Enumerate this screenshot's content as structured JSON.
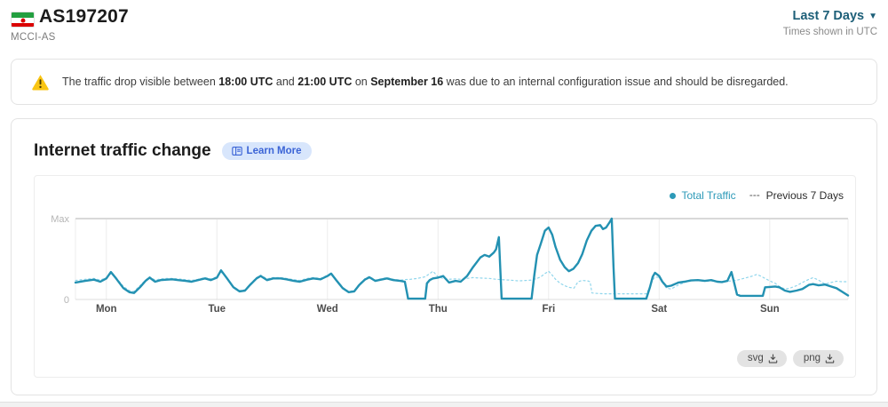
{
  "header": {
    "asn": "AS197207",
    "org": "MCCI-AS",
    "flag": "iran-flag",
    "range_label": "Last 7 Days",
    "range_caret": "▼",
    "timezone_note": "Times shown in UTC"
  },
  "banner": {
    "segments": [
      {
        "text": "The traffic drop visible between ",
        "bold": false
      },
      {
        "text": "18:00 UTC",
        "bold": true
      },
      {
        "text": " and ",
        "bold": false
      },
      {
        "text": "21:00 UTC",
        "bold": true
      },
      {
        "text": " on ",
        "bold": false
      },
      {
        "text": "September 16",
        "bold": true
      },
      {
        "text": " was due to an internal configuration issue and should be disregarded.",
        "bold": false
      }
    ]
  },
  "chart_card": {
    "title": "Internet traffic change",
    "learn_more_label": "Learn More",
    "download_buttons": [
      "svg",
      "png"
    ]
  },
  "chart_data": {
    "type": "line",
    "title": "Internet traffic change",
    "x_unit": "hours_from_Monday_00:00_UTC",
    "x_range": [
      -6.7,
      161
    ],
    "y_axis": {
      "labels": [
        "Max",
        "0"
      ],
      "range": [
        0,
        1
      ]
    },
    "grid": "vertical-day-lines",
    "legend_position": "top-right",
    "x_ticks": [
      {
        "label": "Mon",
        "hour": 0
      },
      {
        "label": "Tue",
        "hour": 24
      },
      {
        "label": "Wed",
        "hour": 48
      },
      {
        "label": "Thu",
        "hour": 72
      },
      {
        "label": "Fri",
        "hour": 96
      },
      {
        "label": "Sat",
        "hour": 120
      },
      {
        "label": "Sun",
        "hour": 144
      }
    ],
    "series": [
      {
        "name": "Total Traffic",
        "style": "solid",
        "color": "#2391b2",
        "points": [
          [
            -6.7,
            0.21
          ],
          [
            -4.6,
            0.23
          ],
          [
            -2.7,
            0.245
          ],
          [
            -1.3,
            0.22
          ],
          [
            0,
            0.26
          ],
          [
            1,
            0.34
          ],
          [
            2.1,
            0.26
          ],
          [
            3.7,
            0.14
          ],
          [
            5,
            0.09
          ],
          [
            6,
            0.08
          ],
          [
            7.3,
            0.15
          ],
          [
            8.5,
            0.23
          ],
          [
            9.4,
            0.27
          ],
          [
            10.6,
            0.22
          ],
          [
            11.8,
            0.24
          ],
          [
            13.1,
            0.245
          ],
          [
            14.3,
            0.25
          ],
          [
            15.6,
            0.24
          ],
          [
            17.2,
            0.23
          ],
          [
            18.5,
            0.22
          ],
          [
            19.9,
            0.24
          ],
          [
            21.4,
            0.26
          ],
          [
            22.7,
            0.24
          ],
          [
            24,
            0.27
          ],
          [
            24.9,
            0.36
          ],
          [
            26.2,
            0.26
          ],
          [
            27.6,
            0.15
          ],
          [
            28.9,
            0.1
          ],
          [
            30.1,
            0.11
          ],
          [
            31.2,
            0.18
          ],
          [
            32.6,
            0.26
          ],
          [
            33.5,
            0.29
          ],
          [
            34.9,
            0.24
          ],
          [
            36.2,
            0.26
          ],
          [
            37.8,
            0.26
          ],
          [
            39.1,
            0.25
          ],
          [
            40.7,
            0.23
          ],
          [
            42,
            0.22
          ],
          [
            43.6,
            0.245
          ],
          [
            44.9,
            0.26
          ],
          [
            46.5,
            0.25
          ],
          [
            48,
            0.29
          ],
          [
            48.8,
            0.32
          ],
          [
            49.9,
            0.24
          ],
          [
            51.3,
            0.14
          ],
          [
            52.6,
            0.09
          ],
          [
            53.8,
            0.1
          ],
          [
            54.9,
            0.18
          ],
          [
            56.1,
            0.245
          ],
          [
            57.1,
            0.275
          ],
          [
            58.4,
            0.23
          ],
          [
            59.6,
            0.245
          ],
          [
            60.9,
            0.26
          ],
          [
            62.3,
            0.24
          ],
          [
            63.8,
            0.23
          ],
          [
            64.8,
            0.22
          ],
          [
            65.2,
            0.1
          ],
          [
            65.5,
            0.01
          ],
          [
            69.2,
            0.01
          ],
          [
            69.6,
            0.2
          ],
          [
            70.2,
            0.24
          ],
          [
            70.9,
            0.26
          ],
          [
            72,
            0.27
          ],
          [
            73.1,
            0.29
          ],
          [
            74.4,
            0.21
          ],
          [
            75.8,
            0.23
          ],
          [
            76.9,
            0.22
          ],
          [
            78.3,
            0.29
          ],
          [
            79.6,
            0.4
          ],
          [
            81.2,
            0.52
          ],
          [
            82.1,
            0.55
          ],
          [
            83.1,
            0.53
          ],
          [
            84.1,
            0.58
          ],
          [
            84.6,
            0.62
          ],
          [
            85.2,
            0.77
          ],
          [
            85.5,
            0.4
          ],
          [
            85.8,
            0.01
          ],
          [
            92.3,
            0.01
          ],
          [
            92.9,
            0.3
          ],
          [
            93.5,
            0.55
          ],
          [
            94.3,
            0.69
          ],
          [
            95.2,
            0.85
          ],
          [
            96,
            0.89
          ],
          [
            96.8,
            0.8
          ],
          [
            97.5,
            0.65
          ],
          [
            98.5,
            0.49
          ],
          [
            99.5,
            0.4
          ],
          [
            100.4,
            0.35
          ],
          [
            101.4,
            0.38
          ],
          [
            102.4,
            0.45
          ],
          [
            103.3,
            0.56
          ],
          [
            104.3,
            0.73
          ],
          [
            105.3,
            0.85
          ],
          [
            106.2,
            0.91
          ],
          [
            107.2,
            0.92
          ],
          [
            107.8,
            0.87
          ],
          [
            108.5,
            0.89
          ],
          [
            109.3,
            0.96
          ],
          [
            109.7,
            1.0
          ],
          [
            110.1,
            0.4
          ],
          [
            110.4,
            0.01
          ],
          [
            117.2,
            0.01
          ],
          [
            118,
            0.15
          ],
          [
            118.6,
            0.28
          ],
          [
            119.1,
            0.33
          ],
          [
            120,
            0.29
          ],
          [
            120.7,
            0.22
          ],
          [
            121.6,
            0.16
          ],
          [
            122.6,
            0.17
          ],
          [
            124.2,
            0.21
          ],
          [
            125.5,
            0.22
          ],
          [
            126.9,
            0.235
          ],
          [
            128.4,
            0.24
          ],
          [
            129.9,
            0.23
          ],
          [
            131.3,
            0.24
          ],
          [
            132.6,
            0.22
          ],
          [
            133.6,
            0.215
          ],
          [
            134.8,
            0.23
          ],
          [
            135.7,
            0.34
          ],
          [
            136.3,
            0.2
          ],
          [
            136.9,
            0.06
          ],
          [
            137.6,
            0.045
          ],
          [
            142.5,
            0.045
          ],
          [
            143,
            0.15
          ],
          [
            144,
            0.155
          ],
          [
            145.2,
            0.16
          ],
          [
            146.1,
            0.15
          ],
          [
            147.3,
            0.11
          ],
          [
            148.4,
            0.095
          ],
          [
            149.8,
            0.11
          ],
          [
            151.1,
            0.13
          ],
          [
            152.5,
            0.18
          ],
          [
            153.4,
            0.19
          ],
          [
            154.6,
            0.175
          ],
          [
            156,
            0.185
          ],
          [
            157.3,
            0.16
          ],
          [
            158.5,
            0.14
          ],
          [
            159.6,
            0.1
          ],
          [
            161,
            0.05
          ]
        ]
      },
      {
        "name": "Previous 7 Days",
        "style": "dotted",
        "color": "#90d6ec",
        "points": [
          [
            -6.7,
            0.235
          ],
          [
            -4.6,
            0.25
          ],
          [
            -2.7,
            0.26
          ],
          [
            -1.3,
            0.24
          ],
          [
            0,
            0.27
          ],
          [
            1,
            0.32
          ],
          [
            2.1,
            0.27
          ],
          [
            3.7,
            0.16
          ],
          [
            5,
            0.11
          ],
          [
            6,
            0.1
          ],
          [
            7.3,
            0.17
          ],
          [
            8.5,
            0.24
          ],
          [
            9.4,
            0.28
          ],
          [
            10.6,
            0.24
          ],
          [
            11.8,
            0.255
          ],
          [
            13.1,
            0.26
          ],
          [
            14.3,
            0.26
          ],
          [
            15.6,
            0.255
          ],
          [
            17.2,
            0.245
          ],
          [
            18.5,
            0.235
          ],
          [
            19.9,
            0.25
          ],
          [
            21.4,
            0.27
          ],
          [
            22.7,
            0.255
          ],
          [
            24,
            0.28
          ],
          [
            24.9,
            0.34
          ],
          [
            26.2,
            0.27
          ],
          [
            27.6,
            0.16
          ],
          [
            28.9,
            0.11
          ],
          [
            30.1,
            0.12
          ],
          [
            31.2,
            0.19
          ],
          [
            32.6,
            0.27
          ],
          [
            33.5,
            0.3
          ],
          [
            34.9,
            0.255
          ],
          [
            36.2,
            0.27
          ],
          [
            37.8,
            0.27
          ],
          [
            39.1,
            0.26
          ],
          [
            40.7,
            0.245
          ],
          [
            42,
            0.235
          ],
          [
            43.6,
            0.26
          ],
          [
            44.9,
            0.27
          ],
          [
            46.5,
            0.26
          ],
          [
            48,
            0.3
          ],
          [
            48.8,
            0.33
          ],
          [
            49.9,
            0.25
          ],
          [
            51.3,
            0.15
          ],
          [
            52.6,
            0.1
          ],
          [
            53.8,
            0.11
          ],
          [
            54.9,
            0.19
          ],
          [
            56.1,
            0.255
          ],
          [
            57.1,
            0.285
          ],
          [
            58.4,
            0.24
          ],
          [
            59.6,
            0.255
          ],
          [
            60.9,
            0.27
          ],
          [
            62.3,
            0.25
          ],
          [
            63.8,
            0.24
          ],
          [
            64.8,
            0.245
          ],
          [
            66,
            0.25
          ],
          [
            67.5,
            0.26
          ],
          [
            69.2,
            0.28
          ],
          [
            70.9,
            0.35
          ],
          [
            72,
            0.28
          ],
          [
            73.1,
            0.26
          ],
          [
            74.4,
            0.25
          ],
          [
            75.8,
            0.255
          ],
          [
            76.9,
            0.25
          ],
          [
            78.3,
            0.26
          ],
          [
            79.6,
            0.27
          ],
          [
            81.2,
            0.265
          ],
          [
            83.1,
            0.26
          ],
          [
            84.6,
            0.25
          ],
          [
            85.8,
            0.245
          ],
          [
            87.5,
            0.24
          ],
          [
            89.5,
            0.23
          ],
          [
            91,
            0.235
          ],
          [
            92.3,
            0.24
          ],
          [
            93.5,
            0.26
          ],
          [
            94.3,
            0.28
          ],
          [
            95.2,
            0.32
          ],
          [
            96,
            0.35
          ],
          [
            96.8,
            0.3
          ],
          [
            97.5,
            0.25
          ],
          [
            98.5,
            0.2
          ],
          [
            99.5,
            0.17
          ],
          [
            100.4,
            0.15
          ],
          [
            101.5,
            0.14
          ],
          [
            102.4,
            0.22
          ],
          [
            103.3,
            0.235
          ],
          [
            104.5,
            0.23
          ],
          [
            105,
            0.22
          ],
          [
            105.4,
            0.08
          ],
          [
            106.5,
            0.075
          ],
          [
            108,
            0.07
          ],
          [
            112,
            0.07
          ],
          [
            117.2,
            0.07
          ],
          [
            118,
            0.15
          ],
          [
            118.6,
            0.24
          ],
          [
            119.1,
            0.28
          ],
          [
            120,
            0.27
          ],
          [
            120.7,
            0.21
          ],
          [
            121.6,
            0.14
          ],
          [
            122.6,
            0.13
          ],
          [
            124.2,
            0.18
          ],
          [
            125.5,
            0.21
          ],
          [
            126.9,
            0.23
          ],
          [
            128.4,
            0.235
          ],
          [
            129.9,
            0.225
          ],
          [
            131.3,
            0.23
          ],
          [
            132.6,
            0.225
          ],
          [
            133.6,
            0.22
          ],
          [
            134.8,
            0.225
          ],
          [
            135.7,
            0.23
          ],
          [
            136.3,
            0.235
          ],
          [
            136.9,
            0.24
          ],
          [
            137.6,
            0.25
          ],
          [
            139,
            0.27
          ],
          [
            140.3,
            0.29
          ],
          [
            141.2,
            0.31
          ],
          [
            142,
            0.29
          ],
          [
            143,
            0.26
          ],
          [
            144,
            0.23
          ],
          [
            145.2,
            0.2
          ],
          [
            146.1,
            0.16
          ],
          [
            147.3,
            0.13
          ],
          [
            148.4,
            0.14
          ],
          [
            149.8,
            0.17
          ],
          [
            151.1,
            0.21
          ],
          [
            152.5,
            0.25
          ],
          [
            153.4,
            0.27
          ],
          [
            154.6,
            0.24
          ],
          [
            156,
            0.19
          ],
          [
            157.3,
            0.21
          ],
          [
            158.5,
            0.225
          ],
          [
            159.6,
            0.22
          ],
          [
            161,
            0.22
          ]
        ]
      }
    ]
  },
  "colors": {
    "total_traffic": "#2391b2",
    "previous_7_days": "#90d6ec",
    "range_selector_text": "#1d5f78",
    "learn_more_bg": "#d8e6fc",
    "learn_more_text": "#3b64d6",
    "warning_yellow": "#f9c513",
    "card_border": "#e3e3e3",
    "gridline": "#ececec",
    "axis_line": "#d9d9d9"
  }
}
